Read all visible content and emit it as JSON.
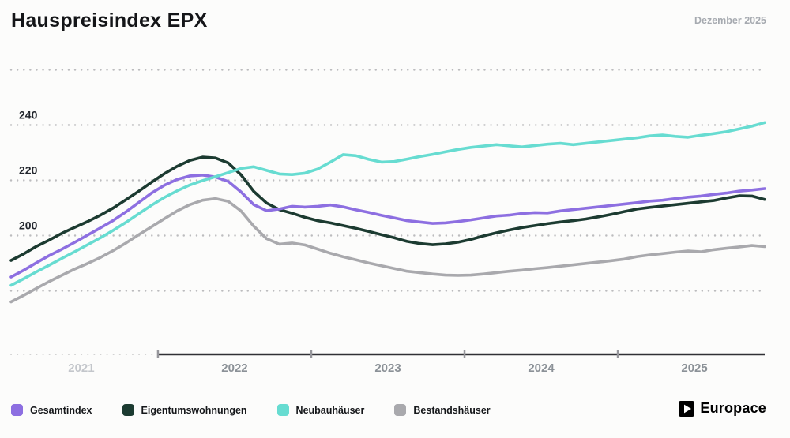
{
  "header": {
    "title": "Hauspreisindex EPX",
    "date_label": "Dezember 2025"
  },
  "brand": {
    "name": "Europace"
  },
  "chart_data": {
    "type": "line",
    "title": "Hauspreisindex EPX",
    "x_unit": "month",
    "x_start": "2021-01",
    "x_end": "2025-12",
    "x_tick_labels": [
      "2021",
      "2022",
      "2023",
      "2024",
      "2025"
    ],
    "y_tick_labels": [
      240,
      220,
      200
    ],
    "y_gridlines": [
      260,
      240,
      220,
      200,
      180
    ],
    "ylim": [
      157,
      262
    ],
    "grid": "dotted-horizontal",
    "legend_position": "bottom",
    "series": [
      {
        "name": "Gesamtindex",
        "color": "#8D6FE1",
        "values": [
          185.0,
          187.5,
          190.2,
          192.8,
          195.1,
          197.6,
          200.2,
          202.8,
          205.5,
          208.6,
          212.0,
          215.4,
          218.2,
          220.3,
          221.6,
          221.9,
          221.2,
          219.6,
          215.8,
          211.2,
          209.0,
          209.6,
          210.6,
          210.3,
          210.6,
          211.1,
          210.4,
          209.3,
          208.4,
          207.3,
          206.4,
          205.4,
          204.9,
          204.4,
          204.6,
          205.1,
          205.7,
          206.4,
          207.1,
          207.4,
          208.0,
          208.3,
          208.2,
          208.9,
          209.4,
          209.9,
          210.4,
          210.9,
          211.4,
          211.9,
          212.5,
          212.8,
          213.4,
          213.9,
          214.3,
          214.9,
          215.4,
          216.1,
          216.5,
          217.0
        ]
      },
      {
        "name": "Eigentumswohnungen",
        "color": "#1C3B31",
        "values": [
          191.0,
          193.4,
          196.1,
          198.4,
          200.9,
          203.0,
          205.1,
          207.4,
          210.0,
          213.0,
          216.1,
          219.3,
          222.4,
          225.1,
          227.2,
          228.4,
          228.1,
          226.3,
          222.0,
          216.0,
          211.8,
          209.4,
          208.1,
          206.6,
          205.4,
          204.6,
          203.6,
          202.6,
          201.5,
          200.3,
          199.2,
          197.9,
          197.1,
          196.7,
          197.0,
          197.6,
          198.6,
          199.9,
          201.0,
          202.0,
          202.9,
          203.6,
          204.3,
          204.9,
          205.4,
          206.0,
          206.8,
          207.7,
          208.7,
          209.6,
          210.2,
          210.7,
          211.2,
          211.7,
          212.2,
          212.7,
          213.6,
          214.4,
          214.3,
          213.1
        ]
      },
      {
        "name": "Neubauhäuser",
        "color": "#67DCD1",
        "values": [
          182.0,
          184.4,
          186.9,
          189.3,
          191.8,
          194.2,
          196.7,
          199.2,
          201.9,
          204.8,
          207.9,
          211.0,
          213.8,
          216.2,
          218.3,
          219.9,
          221.3,
          222.8,
          224.3,
          224.9,
          223.6,
          222.3,
          222.1,
          222.6,
          224.1,
          226.6,
          229.3,
          228.9,
          227.6,
          226.6,
          226.8,
          227.7,
          228.6,
          229.4,
          230.3,
          231.2,
          231.9,
          232.4,
          232.9,
          232.5,
          232.1,
          232.6,
          233.1,
          233.4,
          232.9,
          233.4,
          233.9,
          234.4,
          234.9,
          235.4,
          236.1,
          236.4,
          235.9,
          235.6,
          236.3,
          236.9,
          237.6,
          238.6,
          239.6,
          240.9
        ]
      },
      {
        "name": "Bestandshäuser",
        "color": "#A9A9AD",
        "values": [
          176.0,
          178.4,
          180.9,
          183.4,
          185.7,
          187.9,
          189.9,
          192.1,
          194.6,
          197.3,
          200.3,
          203.2,
          206.1,
          208.9,
          211.2,
          212.8,
          213.4,
          212.4,
          208.9,
          203.4,
          198.9,
          196.9,
          197.3,
          196.6,
          195.1,
          193.6,
          192.3,
          191.2,
          190.1,
          189.1,
          188.1,
          187.1,
          186.6,
          186.1,
          185.7,
          185.6,
          185.7,
          186.1,
          186.6,
          187.1,
          187.5,
          188.0,
          188.4,
          188.9,
          189.4,
          189.9,
          190.4,
          190.9,
          191.5,
          192.4,
          193.0,
          193.5,
          194.0,
          194.4,
          194.1,
          194.9,
          195.4,
          195.9,
          196.4,
          196.0
        ]
      }
    ]
  }
}
